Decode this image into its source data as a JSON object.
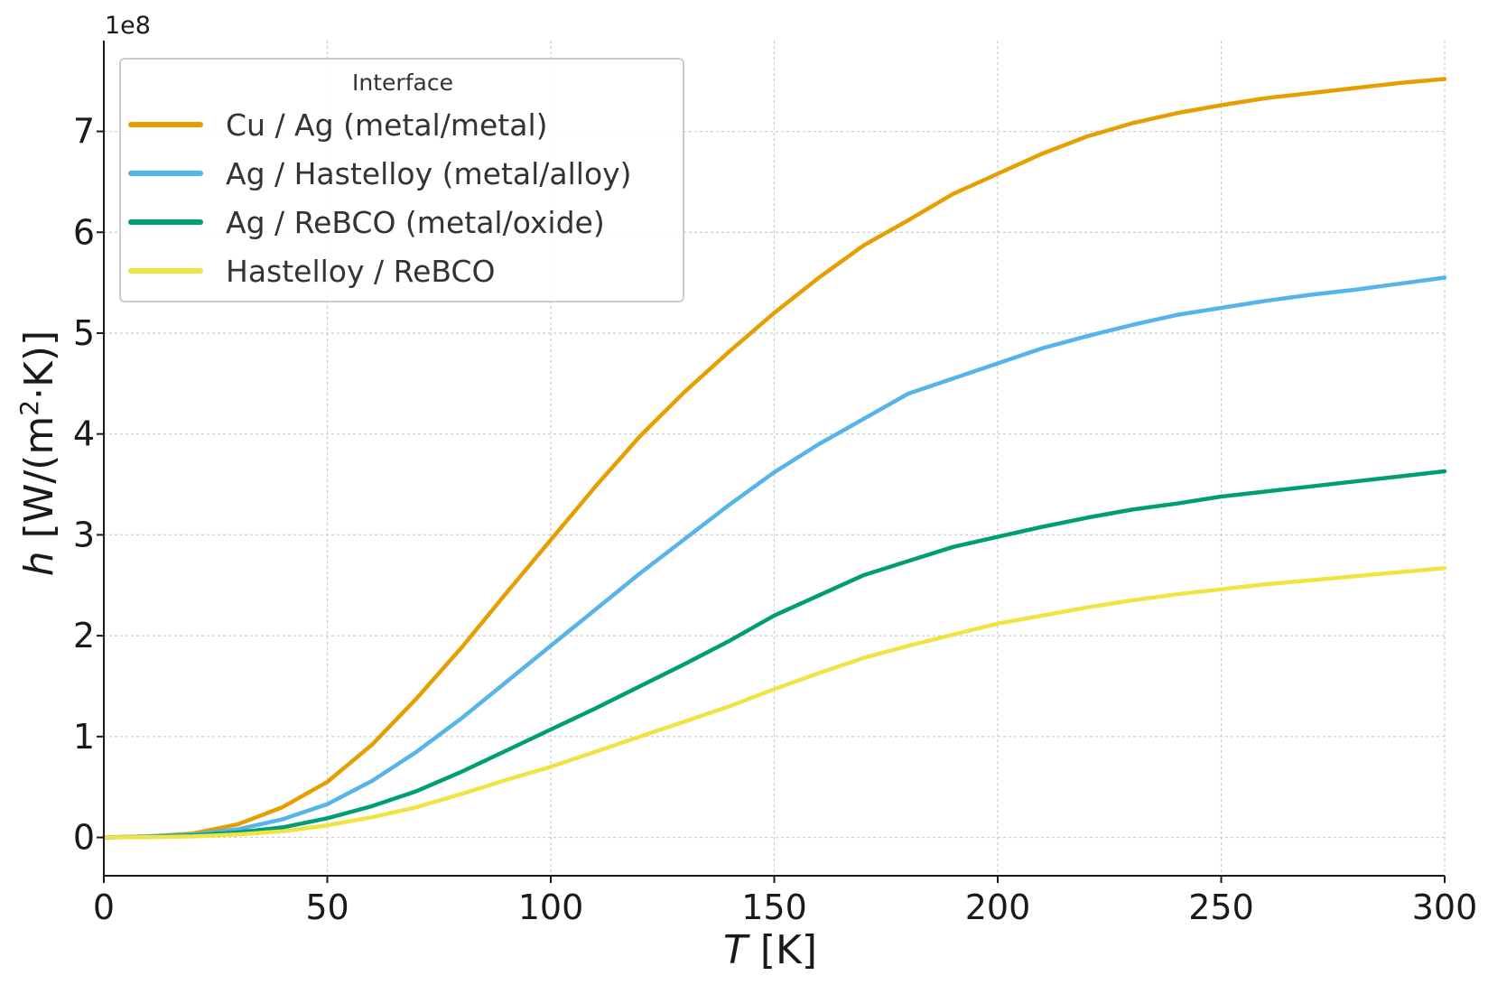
{
  "chart_data": {
    "type": "line",
    "title": "",
    "xlabel_italic": "T",
    "xlabel_rest": " [K]",
    "ylabel_italic": "h",
    "ylabel_rest": " [W/(m",
    "ylabel_sup": "2",
    "ylabel_end": "·K)]",
    "y_offset_label": "1e8",
    "xlim": [
      0,
      300
    ],
    "ylim": [
      -0.38,
      7.9
    ],
    "x_ticks": [
      0,
      50,
      100,
      150,
      200,
      250,
      300
    ],
    "y_ticks": [
      0,
      1,
      2,
      3,
      4,
      5,
      6,
      7
    ],
    "grid": true,
    "legend": {
      "title": "Interface",
      "placement": "top-left"
    },
    "x": [
      0,
      10,
      20,
      30,
      40,
      50,
      60,
      70,
      80,
      90,
      100,
      110,
      120,
      130,
      140,
      150,
      160,
      170,
      180,
      190,
      200,
      210,
      220,
      230,
      240,
      250,
      260,
      270,
      280,
      290,
      300
    ],
    "series": [
      {
        "name": "Cu / Ag (metal/metal)",
        "color": "#E69F00",
        "values": [
          0,
          0.01,
          0.04,
          0.13,
          0.3,
          0.55,
          0.92,
          1.38,
          1.88,
          2.42,
          2.95,
          3.48,
          3.98,
          4.42,
          4.82,
          5.2,
          5.55,
          5.87,
          6.12,
          6.38,
          6.58,
          6.78,
          6.95,
          7.08,
          7.18,
          7.26,
          7.33,
          7.38,
          7.43,
          7.48,
          7.52
        ]
      },
      {
        "name": "Ag / Hastelloy (metal/alloy)",
        "color": "#56B4E9",
        "values": [
          0,
          0.01,
          0.03,
          0.08,
          0.18,
          0.33,
          0.56,
          0.85,
          1.18,
          1.54,
          1.9,
          2.26,
          2.62,
          2.96,
          3.3,
          3.62,
          3.9,
          4.15,
          4.4,
          4.55,
          4.7,
          4.85,
          4.97,
          5.08,
          5.18,
          5.25,
          5.32,
          5.38,
          5.43,
          5.49,
          5.55
        ]
      },
      {
        "name": "Ag / ReBCO (metal/oxide)",
        "color": "#009E73",
        "values": [
          0,
          0.005,
          0.02,
          0.05,
          0.1,
          0.19,
          0.31,
          0.46,
          0.65,
          0.86,
          1.07,
          1.28,
          1.5,
          1.72,
          1.95,
          2.2,
          2.4,
          2.6,
          2.74,
          2.88,
          2.98,
          3.08,
          3.17,
          3.25,
          3.31,
          3.38,
          3.43,
          3.48,
          3.53,
          3.58,
          3.63
        ]
      },
      {
        "name": "Hastelloy / ReBCO",
        "color": "#F0E442",
        "values": [
          0,
          0.003,
          0.01,
          0.03,
          0.06,
          0.12,
          0.2,
          0.3,
          0.43,
          0.57,
          0.7,
          0.85,
          1.0,
          1.15,
          1.3,
          1.47,
          1.63,
          1.78,
          1.9,
          2.01,
          2.12,
          2.2,
          2.28,
          2.35,
          2.41,
          2.46,
          2.51,
          2.55,
          2.59,
          2.63,
          2.67
        ]
      }
    ]
  }
}
